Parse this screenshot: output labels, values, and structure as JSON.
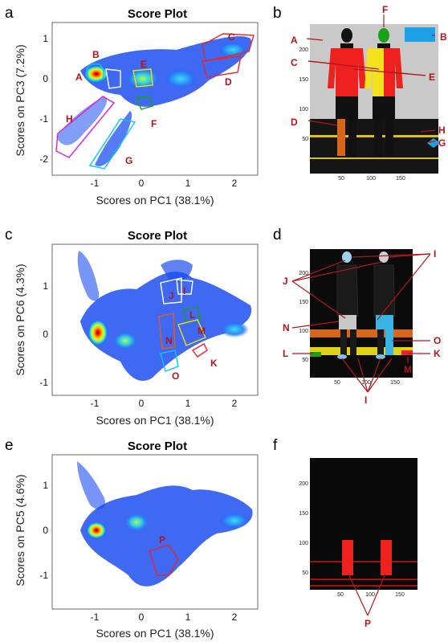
{
  "panels": [
    {
      "letter": "a",
      "title": "Score Plot",
      "xlabel": "Scores on PC1 (38.1%)",
      "ylabel": "Scores on PC3 (7.2%)",
      "xticks": [
        "-1",
        "0",
        "1",
        "2"
      ],
      "yticks": [
        "1",
        "0",
        "-1",
        "-2"
      ],
      "regions": [
        {
          "label": "A",
          "color": "#00c8ff"
        },
        {
          "label": "B",
          "color": "#ffffff"
        },
        {
          "label": "C",
          "color": "#e8262a"
        },
        {
          "label": "D",
          "color": "#e8262a"
        },
        {
          "label": "E",
          "color": "#f0e000"
        },
        {
          "label": "F",
          "color": "#1aa01a"
        },
        {
          "label": "G",
          "color": "#00c8ff"
        },
        {
          "label": "H",
          "color": "#e020d0"
        }
      ]
    },
    {
      "letter": "c",
      "title": "Score Plot",
      "xlabel": "Scores on PC1 (38.1%)",
      "ylabel": "Scores on PC6 (4.3%)",
      "xticks": [
        "-1",
        "0",
        "1",
        "2"
      ],
      "yticks": [
        "1",
        "0",
        "-1"
      ],
      "regions": [
        {
          "label": "I",
          "color": "#ffffff"
        },
        {
          "label": "J",
          "color": "#ffffff"
        },
        {
          "label": "K",
          "color": "#e8262a"
        },
        {
          "label": "L",
          "color": "#1aa01a"
        },
        {
          "label": "M",
          "color": "#f0e000"
        },
        {
          "label": "N",
          "color": "#e85a1a"
        },
        {
          "label": "O",
          "color": "#00c8ff"
        }
      ]
    },
    {
      "letter": "e",
      "title": "Score Plot",
      "xlabel": "Scores on PC1 (38.1%)",
      "ylabel": "Scores on PC5 (4.6%)",
      "xticks": [
        "-1",
        "0",
        "1",
        "2"
      ],
      "yticks": [
        "1",
        "0",
        "-1"
      ],
      "regions": [
        {
          "label": "P",
          "color": "#e8262a"
        }
      ]
    }
  ],
  "images": [
    {
      "letter": "b",
      "yticks": [
        "200",
        "150",
        "100",
        "50"
      ],
      "xticks": [
        "50",
        "100",
        "150"
      ],
      "labels": [
        "A",
        "B",
        "C",
        "D",
        "E",
        "F",
        "G",
        "H"
      ]
    },
    {
      "letter": "d",
      "yticks": [
        "200",
        "150",
        "100",
        "50"
      ],
      "xticks": [
        "50",
        "100",
        "150"
      ],
      "labels": [
        "I",
        "J",
        "K",
        "L",
        "M",
        "N",
        "O",
        "I"
      ]
    },
    {
      "letter": "f",
      "yticks": [
        "200",
        "150",
        "100",
        "50"
      ],
      "xticks": [
        "50",
        "100",
        "150"
      ],
      "labels": [
        "P"
      ]
    }
  ]
}
